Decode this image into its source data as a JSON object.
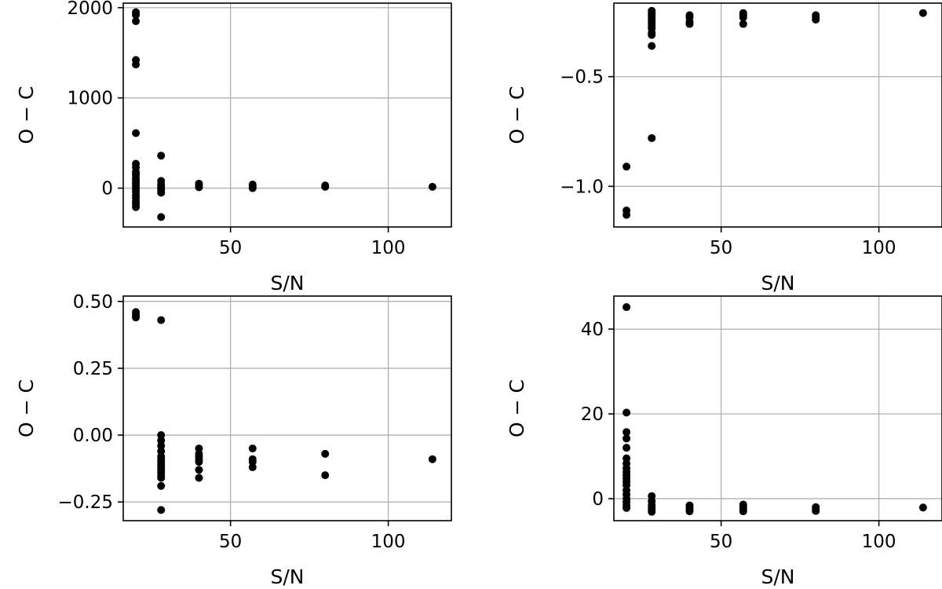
{
  "figure": {
    "background": "#ffffff",
    "marker_color": "#000000",
    "grid_color": "#b0b0b0"
  },
  "chart_data": [
    {
      "type": "scatter",
      "panel": "top-left",
      "title": "",
      "xlabel": "S/N",
      "ylabel": "O − C",
      "xlim": [
        16,
        120
      ],
      "ylim": [
        -430,
        2050
      ],
      "grid": true,
      "xticks": [
        {
          "value": 50,
          "label": "50"
        },
        {
          "value": 100,
          "label": "100"
        }
      ],
      "yticks": [
        {
          "value": 0,
          "label": "0"
        },
        {
          "value": 1000,
          "label": "1000"
        },
        {
          "value": 2000,
          "label": "2000"
        }
      ],
      "series": [
        {
          "color": "#000000",
          "x": [
            20,
            20,
            20,
            20,
            20,
            20,
            20,
            20,
            20,
            20,
            20,
            20,
            20,
            20,
            20,
            20,
            20,
            20,
            20,
            20,
            20,
            28,
            28,
            28,
            28,
            28,
            28,
            28,
            28,
            40,
            40,
            40,
            57,
            57,
            57,
            80,
            80,
            114
          ],
          "y": [
            1950,
            1920,
            1850,
            1420,
            1370,
            610,
            270,
            230,
            180,
            150,
            110,
            80,
            50,
            20,
            -10,
            -40,
            -80,
            -110,
            -150,
            -180,
            -210,
            360,
            80,
            40,
            20,
            0,
            -20,
            -50,
            -320,
            50,
            30,
            10,
            40,
            20,
            0,
            30,
            15,
            15
          ]
        }
      ]
    },
    {
      "type": "scatter",
      "panel": "top-right",
      "title": "",
      "xlabel": "S/N",
      "ylabel": "O − C",
      "xlim": [
        16,
        120
      ],
      "ylim": [
        -1.185,
        -0.165
      ],
      "grid": true,
      "xticks": [
        {
          "value": 50,
          "label": "50"
        },
        {
          "value": 100,
          "label": "100"
        }
      ],
      "yticks": [
        {
          "value": -1.0,
          "label": "−1.0"
        },
        {
          "value": -0.5,
          "label": "−0.5"
        }
      ],
      "series": [
        {
          "color": "#000000",
          "x": [
            20,
            20,
            20,
            28,
            28,
            28,
            28,
            28,
            28,
            28,
            28,
            28,
            28,
            28,
            28,
            28,
            28,
            40,
            40,
            40,
            40,
            57,
            57,
            57,
            57,
            80,
            80,
            80,
            114
          ],
          "y": [
            -0.91,
            -1.11,
            -1.13,
            -0.2,
            -0.21,
            -0.22,
            -0.23,
            -0.24,
            -0.25,
            -0.26,
            -0.27,
            -0.28,
            -0.3,
            -0.31,
            -0.36,
            -0.78,
            -0.21,
            -0.22,
            -0.23,
            -0.25,
            -0.26,
            -0.21,
            -0.22,
            -0.23,
            -0.26,
            -0.22,
            -0.23,
            -0.24,
            -0.21
          ]
        }
      ]
    },
    {
      "type": "scatter",
      "panel": "bottom-left",
      "title": "",
      "xlabel": "S/N",
      "ylabel": "O − C",
      "xlim": [
        16,
        120
      ],
      "ylim": [
        -0.32,
        0.52
      ],
      "grid": true,
      "xticks": [
        {
          "value": 50,
          "label": "50"
        },
        {
          "value": 100,
          "label": "100"
        }
      ],
      "yticks": [
        {
          "value": -0.25,
          "label": "−0.25"
        },
        {
          "value": 0.0,
          "label": "0.00"
        },
        {
          "value": 0.25,
          "label": "0.25"
        },
        {
          "value": 0.5,
          "label": "0.50"
        }
      ],
      "series": [
        {
          "color": "#000000",
          "x": [
            20,
            20,
            20,
            28,
            28,
            28,
            28,
            28,
            28,
            28,
            28,
            28,
            28,
            28,
            28,
            28,
            28,
            28,
            28,
            40,
            40,
            40,
            40,
            40,
            40,
            40,
            57,
            57,
            57,
            57,
            80,
            80,
            114
          ],
          "y": [
            0.46,
            0.45,
            0.44,
            0.43,
            0.0,
            -0.02,
            -0.04,
            -0.06,
            -0.08,
            -0.09,
            -0.1,
            -0.11,
            -0.12,
            -0.13,
            -0.14,
            -0.15,
            -0.16,
            -0.19,
            -0.28,
            -0.05,
            -0.07,
            -0.08,
            -0.09,
            -0.1,
            -0.13,
            -0.16,
            -0.05,
            -0.09,
            -0.1,
            -0.12,
            -0.07,
            -0.15,
            -0.09
          ]
        }
      ]
    },
    {
      "type": "scatter",
      "panel": "bottom-right",
      "title": "",
      "xlabel": "S/N",
      "ylabel": "O − C",
      "xlim": [
        16,
        120
      ],
      "ylim": [
        -5.2,
        47.8
      ],
      "grid": true,
      "xticks": [
        {
          "value": 50,
          "label": "50"
        },
        {
          "value": 100,
          "label": "100"
        }
      ],
      "yticks": [
        {
          "value": 0,
          "label": "0"
        },
        {
          "value": 20,
          "label": "20"
        },
        {
          "value": 40,
          "label": "40"
        }
      ],
      "series": [
        {
          "color": "#000000",
          "x": [
            20,
            20,
            20,
            20,
            20,
            20,
            20,
            20,
            20,
            20,
            20,
            20,
            20,
            20,
            20,
            20,
            20,
            20,
            20,
            28,
            28,
            28,
            28,
            28,
            28,
            40,
            40,
            40,
            40,
            57,
            57,
            57,
            57,
            80,
            80,
            80,
            114
          ],
          "y": [
            45.2,
            20.3,
            15.7,
            14.2,
            9.5,
            8.3,
            7.2,
            6.3,
            5.5,
            4.8,
            4.0,
            3.2,
            2.0,
            1.0,
            0.0,
            -0.8,
            -1.6,
            -2.2,
            12.0,
            0.6,
            -0.6,
            -1.5,
            -2.2,
            -2.8,
            -3.1,
            -1.6,
            -2.1,
            -2.6,
            -3.0,
            -1.4,
            -2.0,
            -2.5,
            -3.0,
            -2.0,
            -2.4,
            -2.9,
            -2.1
          ]
        }
      ]
    }
  ]
}
